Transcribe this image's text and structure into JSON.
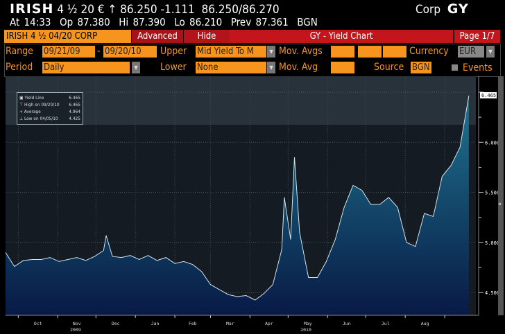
{
  "header": {
    "ticker": "IRISH",
    "coupon": "4 ½",
    "maturity": "20 €",
    "direction_icon": "arrow-up",
    "price": "86.250",
    "change": "-1.111",
    "bid_ask": "86.250/86.270",
    "market": "Corp",
    "function": "GY",
    "time": "At 14:33",
    "open": "Op 87.380",
    "high": "Hi 87.390",
    "low": "Lo 86.210",
    "prev": "Prev 87.361",
    "source": "BGN"
  },
  "toolbar": {
    "security": "IRISH 4 ½  04/20 CORP",
    "advanced": "Advanced",
    "hide": "Hide",
    "title": "GY - Yield Chart",
    "page": "Page 1/7"
  },
  "controls": {
    "range_label": "Range",
    "range_start": "09/21/09",
    "range_sep": "-",
    "range_end": "09/20/10",
    "upper_label": "Upper",
    "upper_value": "Mid Yield To M",
    "mov_avgs_label": "Mov. Avgs",
    "currency_label": "Currency",
    "currency_value": "EUR",
    "period_label": "Period",
    "period_value": "Daily",
    "lower_label": "Lower",
    "lower_value": "None",
    "mov_avg_label": "Mov. Avg",
    "source_label": "Source",
    "source_value": "BGN",
    "events_label": "Events",
    "events_checked": false
  },
  "legend": {
    "rows": [
      {
        "label": "Yield Line",
        "value": "6.465"
      },
      {
        "label": "High on 09/20/10",
        "value": "6.465"
      },
      {
        "label": "Average",
        "value": "4.964"
      },
      {
        "label": "Low on 04/05/10",
        "value": "4.425"
      }
    ]
  },
  "colors": {
    "orange": "#f7941d",
    "red": "#c4151c",
    "line": "#cfe6ee",
    "fill_top": "#1f7590",
    "fill_bottom": "#081a45"
  },
  "chart_data": {
    "type": "area",
    "ylim": [
      4.4,
      6.55
    ],
    "xlim": [
      "2009-09-21",
      "2010-09-20"
    ],
    "grid": true,
    "y_ticks": [
      "4.500",
      "5.000",
      "5.500",
      "6.000",
      "6.500"
    ],
    "last_value_label": "6.465",
    "x_tick_labels": [
      "Oct",
      "Nov",
      "Dec",
      "Jan",
      "Feb",
      "Mar",
      "Apr",
      "May",
      "Jun",
      "Jul",
      "Aug"
    ],
    "year_labels": [
      "2009",
      "2010"
    ],
    "points": [
      [
        "2009-09-21",
        4.9
      ],
      [
        "2009-09-28",
        4.76
      ],
      [
        "2009-10-05",
        4.82
      ],
      [
        "2009-10-12",
        4.83
      ],
      [
        "2009-10-19",
        4.83
      ],
      [
        "2009-10-26",
        4.85
      ],
      [
        "2009-11-02",
        4.81
      ],
      [
        "2009-11-09",
        4.83
      ],
      [
        "2009-11-16",
        4.85
      ],
      [
        "2009-11-23",
        4.82
      ],
      [
        "2009-11-30",
        4.86
      ],
      [
        "2009-12-07",
        4.92
      ],
      [
        "2009-12-09",
        5.07
      ],
      [
        "2009-12-14",
        4.86
      ],
      [
        "2009-12-21",
        4.85
      ],
      [
        "2009-12-28",
        4.87
      ],
      [
        "2010-01-04",
        4.83
      ],
      [
        "2010-01-11",
        4.87
      ],
      [
        "2010-01-18",
        4.82
      ],
      [
        "2010-01-25",
        4.85
      ],
      [
        "2010-02-01",
        4.79
      ],
      [
        "2010-02-08",
        4.81
      ],
      [
        "2010-02-15",
        4.78
      ],
      [
        "2010-02-22",
        4.71
      ],
      [
        "2010-03-01",
        4.58
      ],
      [
        "2010-03-08",
        4.53
      ],
      [
        "2010-03-15",
        4.48
      ],
      [
        "2010-03-22",
        4.46
      ],
      [
        "2010-03-29",
        4.47
      ],
      [
        "2010-04-05",
        4.425
      ],
      [
        "2010-04-12",
        4.49
      ],
      [
        "2010-04-19",
        4.58
      ],
      [
        "2010-04-26",
        4.93
      ],
      [
        "2010-04-28",
        5.45
      ],
      [
        "2010-05-03",
        5.03
      ],
      [
        "2010-05-06",
        5.85
      ],
      [
        "2010-05-10",
        5.1
      ],
      [
        "2010-05-17",
        4.65
      ],
      [
        "2010-05-24",
        4.65
      ],
      [
        "2010-05-31",
        4.81
      ],
      [
        "2010-06-07",
        5.03
      ],
      [
        "2010-06-14",
        5.35
      ],
      [
        "2010-06-21",
        5.57
      ],
      [
        "2010-06-28",
        5.52
      ],
      [
        "2010-07-05",
        5.38
      ],
      [
        "2010-07-12",
        5.38
      ],
      [
        "2010-07-19",
        5.45
      ],
      [
        "2010-07-26",
        5.35
      ],
      [
        "2010-08-02",
        5.0
      ],
      [
        "2010-08-09",
        4.96
      ],
      [
        "2010-08-16",
        5.29
      ],
      [
        "2010-08-23",
        5.26
      ],
      [
        "2010-08-30",
        5.66
      ],
      [
        "2010-09-06",
        5.77
      ],
      [
        "2010-09-13",
        5.95
      ],
      [
        "2010-09-20",
        6.465
      ]
    ]
  }
}
